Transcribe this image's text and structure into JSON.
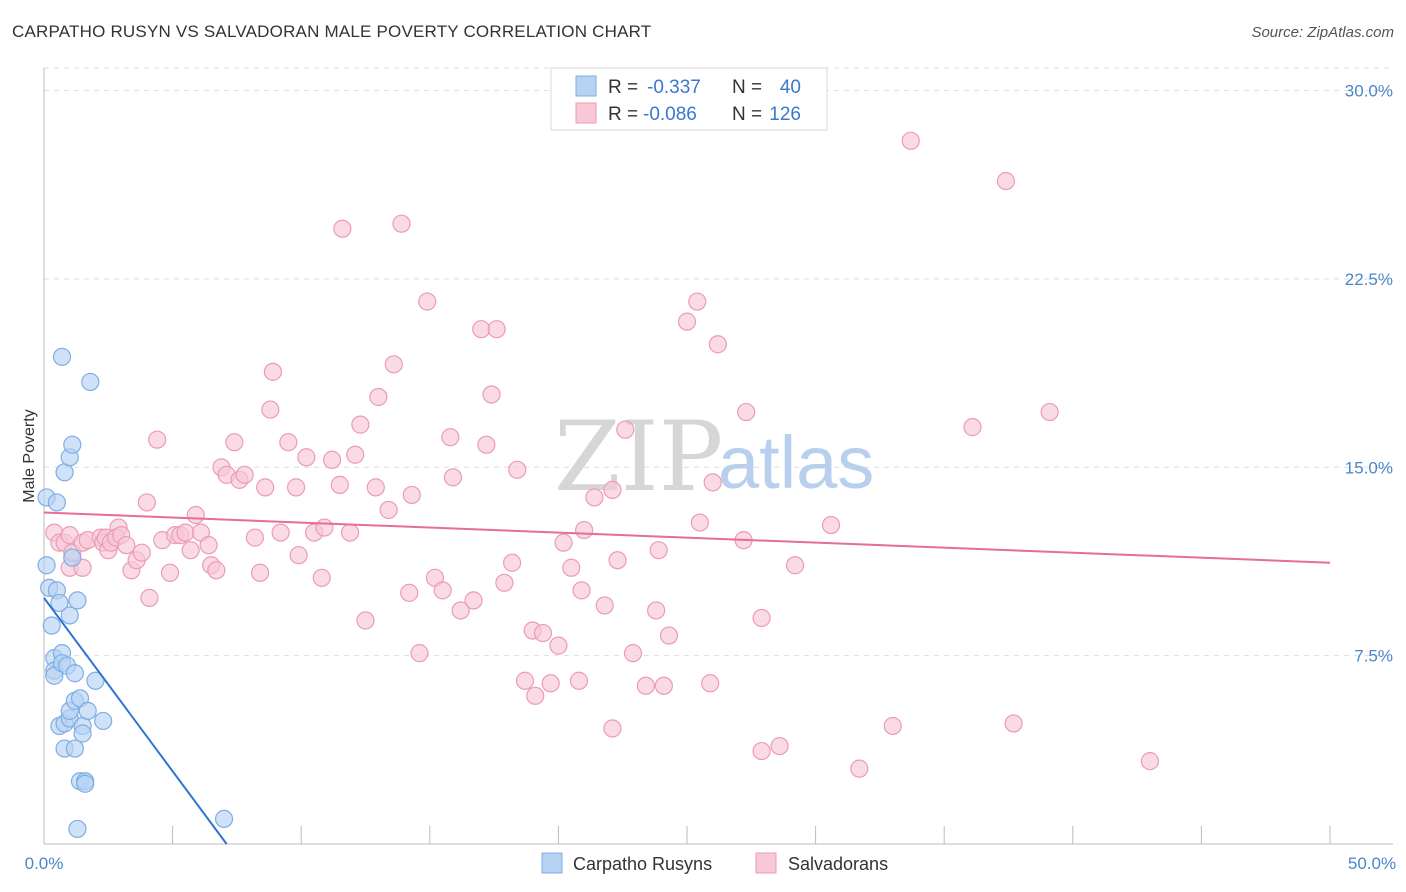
{
  "title": "CARPATHO RUSYN VS SALVADORAN MALE POVERTY CORRELATION CHART",
  "source": "Source: ZipAtlas.com",
  "watermark": {
    "left": "ZIP",
    "right": "atlas"
  },
  "legend": {
    "r_label": "R =",
    "n_label": "N =",
    "series": [
      {
        "r": "-0.337",
        "n": "40"
      },
      {
        "r": "-0.086",
        "n": "126"
      }
    ]
  },
  "chart_data": {
    "type": "scatter",
    "title": "CARPATHO RUSYN VS SALVADORAN MALE POVERTY CORRELATION CHART",
    "xlabel": "",
    "ylabel": "Male Poverty",
    "xlim": [
      0,
      50
    ],
    "ylim": [
      0,
      30.9
    ],
    "x_tick_labels": [
      "0.0%",
      "50.0%"
    ],
    "y_ticks": [
      7.5,
      15.0,
      22.5,
      30.0
    ],
    "y_tick_labels": [
      "7.5%",
      "15.0%",
      "22.5%",
      "30.0%"
    ],
    "colors": {
      "carpatho_fill": "#b7d3f4",
      "carpatho_stroke": "#7eaee3",
      "carpatho_line": "#2f74d4",
      "salvadoran_fill": "#f8c8d7",
      "salvadoran_stroke": "#ec9bb5",
      "salvadoran_line": "#e56d96",
      "tick_label": "#4a86c8",
      "grid": "#dddddd"
    },
    "series": [
      {
        "name": "Carpatho Rusyns",
        "trend": {
          "x": [
            0.0,
            7.1
          ],
          "y": [
            9.8,
            0.0
          ]
        },
        "points": [
          [
            0.1,
            11.1
          ],
          [
            0.1,
            13.8
          ],
          [
            0.2,
            10.2
          ],
          [
            0.3,
            8.7
          ],
          [
            0.4,
            7.4
          ],
          [
            0.4,
            6.9
          ],
          [
            0.4,
            6.7
          ],
          [
            0.5,
            13.6
          ],
          [
            0.5,
            10.1
          ],
          [
            0.6,
            9.6
          ],
          [
            0.6,
            4.7
          ],
          [
            0.7,
            7.6
          ],
          [
            0.7,
            7.2
          ],
          [
            0.8,
            14.8
          ],
          [
            0.8,
            3.8
          ],
          [
            0.8,
            4.8
          ],
          [
            0.7,
            19.4
          ],
          [
            0.9,
            7.1
          ],
          [
            1.0,
            5.0
          ],
          [
            1.0,
            5.3
          ],
          [
            1.0,
            9.1
          ],
          [
            1.0,
            15.4
          ],
          [
            1.1,
            15.9
          ],
          [
            1.1,
            11.4
          ],
          [
            1.2,
            5.7
          ],
          [
            1.2,
            6.8
          ],
          [
            1.2,
            3.8
          ],
          [
            1.3,
            9.7
          ],
          [
            1.4,
            2.5
          ],
          [
            1.3,
            0.6
          ],
          [
            1.4,
            5.8
          ],
          [
            1.5,
            4.7
          ],
          [
            1.5,
            4.4
          ],
          [
            1.6,
            2.5
          ],
          [
            1.6,
            2.4
          ],
          [
            1.7,
            5.3
          ],
          [
            1.8,
            18.4
          ],
          [
            2.0,
            6.5
          ],
          [
            2.3,
            4.9
          ],
          [
            7.0,
            1.0
          ]
        ]
      },
      {
        "name": "Salvadorans",
        "trend": {
          "x": [
            0.0,
            50.0
          ],
          "y": [
            13.2,
            11.2
          ]
        },
        "points": [
          [
            0.4,
            12.4
          ],
          [
            0.6,
            12.0
          ],
          [
            0.8,
            12.0
          ],
          [
            1.0,
            12.3
          ],
          [
            1.0,
            11.0
          ],
          [
            1.1,
            11.6
          ],
          [
            1.5,
            12.0
          ],
          [
            1.5,
            11.0
          ],
          [
            1.7,
            12.1
          ],
          [
            2.2,
            12.2
          ],
          [
            2.3,
            12.0
          ],
          [
            2.4,
            12.2
          ],
          [
            2.5,
            11.7
          ],
          [
            2.6,
            12.0
          ],
          [
            2.9,
            12.6
          ],
          [
            2.8,
            12.2
          ],
          [
            3.0,
            12.3
          ],
          [
            3.2,
            11.9
          ],
          [
            3.4,
            10.9
          ],
          [
            3.6,
            11.3
          ],
          [
            3.8,
            11.6
          ],
          [
            4.0,
            13.6
          ],
          [
            4.1,
            9.8
          ],
          [
            4.4,
            16.1
          ],
          [
            4.6,
            12.1
          ],
          [
            4.9,
            10.8
          ],
          [
            5.1,
            12.3
          ],
          [
            5.3,
            12.3
          ],
          [
            5.5,
            12.4
          ],
          [
            5.7,
            11.7
          ],
          [
            5.9,
            13.1
          ],
          [
            6.1,
            12.4
          ],
          [
            6.4,
            11.9
          ],
          [
            6.5,
            11.1
          ],
          [
            6.7,
            10.9
          ],
          [
            6.9,
            15.0
          ],
          [
            7.1,
            14.7
          ],
          [
            7.4,
            16.0
          ],
          [
            7.6,
            14.5
          ],
          [
            7.8,
            14.7
          ],
          [
            8.2,
            12.2
          ],
          [
            8.4,
            10.8
          ],
          [
            8.6,
            14.2
          ],
          [
            8.8,
            17.3
          ],
          [
            8.9,
            18.8
          ],
          [
            9.2,
            12.4
          ],
          [
            9.5,
            16.0
          ],
          [
            9.8,
            14.2
          ],
          [
            9.9,
            11.5
          ],
          [
            10.2,
            15.4
          ],
          [
            10.5,
            12.4
          ],
          [
            10.8,
            10.6
          ],
          [
            10.9,
            12.6
          ],
          [
            11.2,
            15.3
          ],
          [
            11.5,
            14.3
          ],
          [
            11.6,
            24.5
          ],
          [
            11.9,
            12.4
          ],
          [
            12.1,
            15.5
          ],
          [
            12.3,
            16.7
          ],
          [
            12.5,
            8.9
          ],
          [
            12.9,
            14.2
          ],
          [
            13.0,
            17.8
          ],
          [
            13.4,
            13.3
          ],
          [
            13.6,
            19.1
          ],
          [
            13.9,
            24.7
          ],
          [
            14.2,
            10.0
          ],
          [
            14.3,
            13.9
          ],
          [
            14.6,
            7.6
          ],
          [
            14.9,
            21.6
          ],
          [
            15.2,
            10.6
          ],
          [
            15.5,
            10.1
          ],
          [
            15.8,
            16.2
          ],
          [
            15.9,
            14.6
          ],
          [
            16.2,
            9.3
          ],
          [
            16.7,
            9.7
          ],
          [
            17.0,
            20.5
          ],
          [
            17.2,
            15.9
          ],
          [
            17.4,
            17.9
          ],
          [
            17.6,
            20.5
          ],
          [
            17.9,
            10.4
          ],
          [
            18.2,
            11.2
          ],
          [
            18.4,
            14.9
          ],
          [
            18.7,
            6.5
          ],
          [
            19.0,
            8.5
          ],
          [
            19.1,
            5.9
          ],
          [
            19.4,
            8.4
          ],
          [
            19.7,
            6.4
          ],
          [
            20.2,
            12.0
          ],
          [
            20.0,
            7.9
          ],
          [
            20.5,
            11.0
          ],
          [
            20.8,
            6.5
          ],
          [
            20.9,
            10.1
          ],
          [
            21.0,
            12.5
          ],
          [
            21.4,
            13.8
          ],
          [
            21.8,
            9.5
          ],
          [
            22.1,
            14.1
          ],
          [
            22.1,
            4.6
          ],
          [
            22.3,
            11.3
          ],
          [
            22.6,
            16.5
          ],
          [
            22.9,
            7.6
          ],
          [
            23.4,
            6.3
          ],
          [
            23.8,
            9.3
          ],
          [
            23.9,
            11.7
          ],
          [
            24.1,
            6.3
          ],
          [
            24.3,
            8.3
          ],
          [
            25.0,
            20.8
          ],
          [
            25.4,
            21.6
          ],
          [
            25.5,
            12.8
          ],
          [
            26.0,
            14.4
          ],
          [
            26.2,
            19.9
          ],
          [
            25.9,
            6.4
          ],
          [
            27.2,
            12.1
          ],
          [
            27.3,
            17.2
          ],
          [
            27.9,
            9.0
          ],
          [
            27.9,
            3.7
          ],
          [
            28.6,
            3.9
          ],
          [
            29.2,
            11.1
          ],
          [
            30.6,
            12.7
          ],
          [
            31.7,
            3.0
          ],
          [
            33.0,
            4.7
          ],
          [
            33.7,
            28.0
          ],
          [
            36.1,
            16.6
          ],
          [
            37.7,
            4.8
          ],
          [
            37.4,
            26.4
          ],
          [
            39.1,
            17.2
          ],
          [
            43.0,
            3.3
          ]
        ]
      }
    ]
  },
  "bottom_legend": [
    "Carpatho Rusyns",
    "Salvadorans"
  ]
}
